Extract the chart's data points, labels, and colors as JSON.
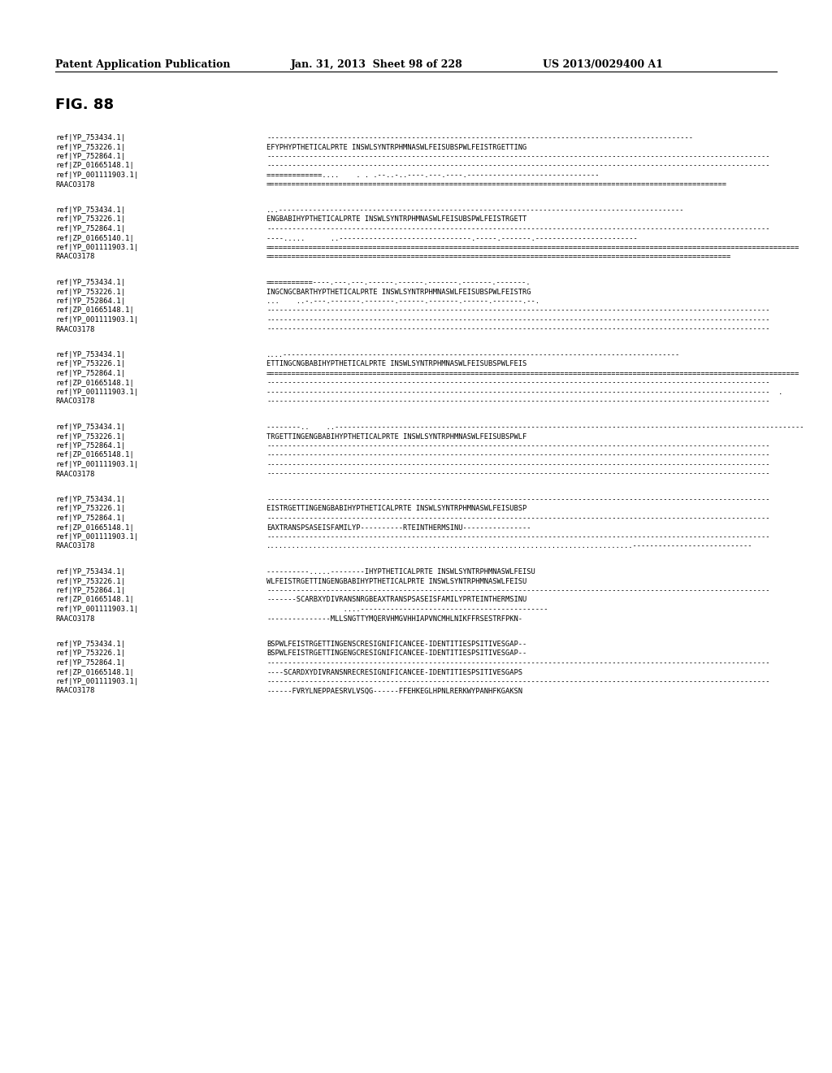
{
  "header_left": "Patent Application Publication",
  "header_middle": "Jan. 31, 2013  Sheet 98 of 228",
  "header_right": "US 2013/0029400 A1",
  "fig_label": "FIG. 88",
  "background_color": "#ffffff",
  "text_color": "#000000",
  "blocks": [
    {
      "labels": [
        "ref|YP_753434.1|",
        "ref|YP_753226.1|",
        "ref|YP_752864.1|",
        "ref|ZP_01665148.1|",
        "ref|YP_001111903.1|",
        "RAACO3178"
      ],
      "sequences": [
        "----------------------------------------------------------------------------------------------------",
        "EFYPHYPTHETICALPRTE INSWLSYNTRPHMNASWLFEISUBSPWLFEISTRGETTING",
        "----------------------------------------------------------------------------------------------------------------------",
        "----------------------------------------------------------------------------------------------------------------------",
        "=============....    . . .--..-..----.---.----.-------------------------------",
        "============================================================================================================"
      ]
    },
    {
      "labels": [
        "ref|YP_753434.1|",
        "ref|YP_753226.1|",
        "ref|YP_752864.1|",
        "ref|ZP_01665140.1|",
        "ref|YP_001111903.1|",
        "RAACO3178"
      ],
      "sequences": [
        "...-----------------------------------------------------------------------------------------------",
        "ENGBABIHYPTHETICALPRTE INSWLSYNTRPHMNASWLFEISUBSPWLFEISTRGETT",
        "----------------------------------------------------------------------------------------------------------------------",
        "----.....      ..-------------------------------.-----.-------.------------------------",
        "=============================================================================================================================",
        "============================================================================================================="
      ]
    },
    {
      "labels": [
        "ref|YP_753434.1|",
        "ref|YP_753226.1|",
        "ref|YP_752864.1|",
        "ref|ZP_01665148.1|",
        "ref|YP_001111903.1|",
        "RAACO3178"
      ],
      "sequences": [
        "===========----.---.---.------.------.-------.-------.-------.",
        "INGCNGCBARTHYPTHETICALPRTE INSWLSYNTRPHMNASWLFEISUBSPWLFEISTRG",
        "...    ..-.---.-------.-------.------.-------.------.-------.--.",
        "----------------------------------------------------------------------------------------------------------------------",
        "----------------------------------------------------------------------------------------------------------------------",
        "----------------------------------------------------------------------------------------------------------------------"
      ]
    },
    {
      "labels": [
        "ref|YP_753434.1|",
        "ref|YP_753226.1|",
        "ref|YP_752864.1|",
        "ref|ZP_01665148.1|",
        "ref|YP_001111903.1|",
        "RAACO3178"
      ],
      "sequences": [
        "....---------------------------------------------------------------------------------------------",
        "ETTINGCNGBABIHYPTHETICALPRTE INSWLSYNTRPHMNASWLFEISUBSPWLFEIS",
        "=============================================================================================================================",
        "----------------------------------------------------------------------------------------------------------------------",
        "----------------------------------------------------------------------------------------------------------------------  .",
        "----------------------------------------------------------------------------------------------------------------------"
      ]
    },
    {
      "labels": [
        "ref|YP_753434.1|",
        "ref|YP_753226.1|",
        "ref|YP_752864.1|",
        "ref|ZP_01665148.1|",
        "ref|YP_001111903.1|",
        "RAACO3178"
      ],
      "sequences": [
        "--------..    ..--------------------------------------------------------------------------------------------------------------",
        "TRGETTINGENGBABIHYPTHETICALPRTE INSWLSYNTRPHMNASWLFEISUBSPWLF",
        "----------------------------------------------------------------------------------------------------------------------",
        "----------------------------------------------------------------------------------------------------------------------",
        "----------------------------------------------------------------------------------------------------------------------",
        "----------------------------------------------------------------------------------------------------------------------"
      ]
    },
    {
      "labels": [
        "ref|YP_753434.1|",
        "ref|YP_753226.1|",
        "ref|YP_752864.1|",
        "ref|ZP_01665148.1|",
        "ref|YP_001111903.1|",
        "RAACO3178"
      ],
      "sequences": [
        "----------------------------------------------------------------------------------------------------------------------",
        "EISTRGETTINGENGBABIHYPTHETICALPRTE INSWLSYNTRPHMNASWLFEISUBSP",
        "----------------------------------------------------------------------------------------------------------------------",
        "EAXTRANSPSASEISFAMILYP----------RTEINTHERMSINU----------------",
        "----------------------------------------------------------------------------------------------------------------------",
        "......................................................................................----------------------------"
      ]
    },
    {
      "labels": [
        "ref|YP_753434.1|",
        "ref|YP_753226.1|",
        "ref|YP_752864.1|",
        "ref|ZP_01665148.1|",
        "ref|YP_001111903.1|",
        "RAACO3178"
      ],
      "sequences": [
        "----------.....--------IHYPTHETICALPRTE INSWLSYNTRPHMNASWLFEISU",
        "WLFEISTRGETTINGENGBABIHYPTHETICALPRTE INSWLSYNTRPHMNASWLFEISU",
        "----------------------------------------------------------------------------------------------------------------------",
        "-------SCARBXYDIVRANSNRGBEAXTRANSPSASEISFAMILYPRTEINTHERMSINU",
        "                  ....--------------------------------------------",
        "---------------MLLSNGTTYMQERVHMGVHHIAPVNCMHLNIKFFRSESTRFPKN-"
      ]
    },
    {
      "labels": [
        "ref|YP_753434.1|",
        "ref|YP_753226.1|",
        "ref|YP_752864.1|",
        "ref|ZP_01665148.1|",
        "ref|YP_001111903.1|",
        "RAACO3178"
      ],
      "sequences": [
        "BSPWLFEISTRGETTINGENSCRESIGNIFICANCEE-IDENTITIESPSITIVESGAP--",
        "BSPWLFEISTRGETTINGENGCRESIGNIFICANCEE-IDENTITIESPSITIVESGAP--",
        "----------------------------------------------------------------------------------------------------------------------",
        "----SCARDXYDIVRANSNRECRESIGNIFICANCEE-IDENTITIESPSITIVESGAPS",
        "----------------------------------------------------------------------------------------------------------------------",
        "------FVRYLNEPPAESRVLVSQG------FFEHKEGLHPNLRERKWYPANHFKGAKSN"
      ]
    }
  ]
}
